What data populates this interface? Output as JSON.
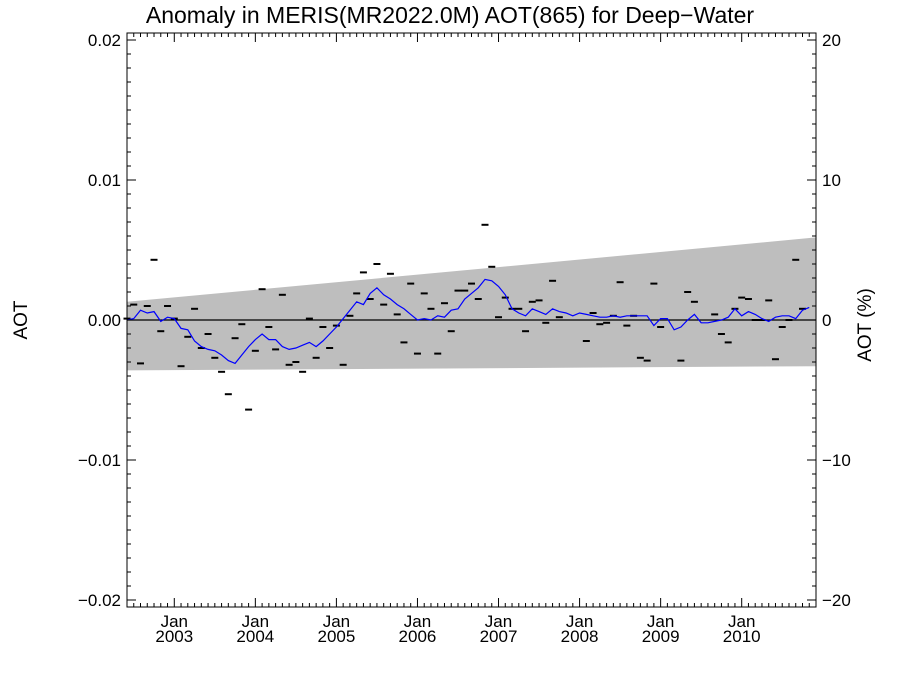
{
  "chart_data": {
    "type": "scatter",
    "title": "Anomaly in MERIS(MR2022.0M) AOT(865) for Deep−Water",
    "ylabel": "AOT",
    "ylabel_right": "AOT (%)",
    "xlim": [
      "2002-06",
      "2010-12"
    ],
    "ylim": [
      -0.0205,
      0.0205
    ],
    "ylim_right": [
      -20.5,
      20.5
    ],
    "grid": false,
    "x_ticks": [
      {
        "month": "Jan",
        "year": "2003",
        "date": "2003-01"
      },
      {
        "month": "Jan",
        "year": "2004",
        "date": "2004-01"
      },
      {
        "month": "Jan",
        "year": "2005",
        "date": "2005-01"
      },
      {
        "month": "Jan",
        "year": "2006",
        "date": "2006-01"
      },
      {
        "month": "Jan",
        "year": "2007",
        "date": "2007-01"
      },
      {
        "month": "Jan",
        "year": "2008",
        "date": "2008-01"
      },
      {
        "month": "Jan",
        "year": "2009",
        "date": "2009-01"
      },
      {
        "month": "Jan",
        "year": "2010",
        "date": "2010-01"
      }
    ],
    "y_ticks_left": [
      {
        "value": 0.02,
        "label": "0.02"
      },
      {
        "value": 0.01,
        "label": "0.01"
      },
      {
        "value": 0.0,
        "label": "0.00"
      },
      {
        "value": -0.01,
        "label": "−0.01"
      },
      {
        "value": -0.02,
        "label": "−0.02"
      }
    ],
    "y_ticks_right": [
      {
        "value": 20,
        "label": "20"
      },
      {
        "value": 10,
        "label": "10"
      },
      {
        "value": 0,
        "label": "0"
      },
      {
        "value": -10,
        "label": "−10"
      },
      {
        "value": -20,
        "label": "−20"
      }
    ],
    "band": {
      "x": [
        "2002-06",
        "2010-12"
      ],
      "upper": [
        0.0013,
        0.0059
      ],
      "lower": [
        -0.0036,
        -0.0033
      ],
      "color": "#bebebe"
    },
    "zero_line": {
      "y": 0.0,
      "color": "#000000"
    },
    "monthly_points": {
      "color": "#000000",
      "values": [
        [
          "2002-06",
          0.0001
        ],
        [
          "2002-07",
          0.0011
        ],
        [
          "2002-08",
          -0.0031
        ],
        [
          "2002-09",
          0.001
        ],
        [
          "2002-10",
          0.0043
        ],
        [
          "2002-11",
          -0.0008
        ],
        [
          "2002-12",
          0.001
        ],
        [
          "2003-01",
          0.0001
        ],
        [
          "2003-02",
          -0.0033
        ],
        [
          "2003-03",
          -0.0012
        ],
        [
          "2003-04",
          0.0008
        ],
        [
          "2003-05",
          -0.002
        ],
        [
          "2003-06",
          -0.001
        ],
        [
          "2003-07",
          -0.0027
        ],
        [
          "2003-08",
          -0.0037
        ],
        [
          "2003-09",
          -0.0053
        ],
        [
          "2003-10",
          -0.0013
        ],
        [
          "2003-11",
          -0.0003
        ],
        [
          "2003-12",
          -0.0064
        ],
        [
          "2004-01",
          -0.0022
        ],
        [
          "2004-02",
          0.0022
        ],
        [
          "2004-03",
          -0.0005
        ],
        [
          "2004-04",
          -0.0021
        ],
        [
          "2004-05",
          0.0018
        ],
        [
          "2004-06",
          -0.0032
        ],
        [
          "2004-07",
          -0.003
        ],
        [
          "2004-08",
          -0.0037
        ],
        [
          "2004-09",
          0.0001
        ],
        [
          "2004-10",
          -0.0027
        ],
        [
          "2004-11",
          -0.0005
        ],
        [
          "2004-12",
          -0.002
        ],
        [
          "2005-01",
          -0.0004
        ],
        [
          "2005-02",
          -0.0032
        ],
        [
          "2005-03",
          0.0003
        ],
        [
          "2005-04",
          0.0019
        ],
        [
          "2005-05",
          0.0034
        ],
        [
          "2005-06",
          0.0015
        ],
        [
          "2005-07",
          0.004
        ],
        [
          "2005-08",
          0.0011
        ],
        [
          "2005-09",
          0.0033
        ],
        [
          "2005-10",
          0.0004
        ],
        [
          "2005-11",
          -0.0016
        ],
        [
          "2005-12",
          0.0026
        ],
        [
          "2006-01",
          -0.0024
        ],
        [
          "2006-02",
          0.0019
        ],
        [
          "2006-03",
          0.0008
        ],
        [
          "2006-04",
          -0.0024
        ],
        [
          "2006-05",
          0.0012
        ],
        [
          "2006-06",
          -0.0008
        ],
        [
          "2006-07",
          0.0021
        ],
        [
          "2006-08",
          0.0021
        ],
        [
          "2006-09",
          0.0026
        ],
        [
          "2006-10",
          0.0015
        ],
        [
          "2006-11",
          0.0068
        ],
        [
          "2006-12",
          0.0038
        ],
        [
          "2007-01",
          0.0002
        ],
        [
          "2007-02",
          0.0016
        ],
        [
          "2007-03",
          0.0008
        ],
        [
          "2007-04",
          0.0008
        ],
        [
          "2007-05",
          -0.0008
        ],
        [
          "2007-06",
          0.0013
        ],
        [
          "2007-07",
          0.0014
        ],
        [
          "2007-08",
          -0.0002
        ],
        [
          "2007-09",
          0.0028
        ],
        [
          "2007-10",
          0.0002
        ],
        [
          "2008-02",
          -0.0015
        ],
        [
          "2008-03",
          0.0005
        ],
        [
          "2008-04",
          -0.0003
        ],
        [
          "2008-05",
          -0.0002
        ],
        [
          "2008-06",
          0.0003
        ],
        [
          "2008-07",
          0.0027
        ],
        [
          "2008-08",
          -0.0004
        ],
        [
          "2008-09",
          0.0003
        ],
        [
          "2008-10",
          -0.0027
        ],
        [
          "2008-11",
          -0.0029
        ],
        [
          "2008-12",
          0.0026
        ],
        [
          "2009-01",
          -0.0005
        ],
        [
          "2009-04",
          -0.0029
        ],
        [
          "2009-05",
          0.002
        ],
        [
          "2009-06",
          0.0013
        ],
        [
          "2009-09",
          0.0004
        ],
        [
          "2009-10",
          -0.001
        ],
        [
          "2009-11",
          -0.0016
        ],
        [
          "2009-12",
          0.0008
        ],
        [
          "2010-01",
          0.0016
        ],
        [
          "2010-02",
          0.0015
        ],
        [
          "2010-03",
          0.0
        ],
        [
          "2010-04",
          0.0
        ],
        [
          "2010-05",
          0.0014
        ],
        [
          "2010-06",
          -0.0028
        ],
        [
          "2010-07",
          -0.0005
        ],
        [
          "2010-08",
          0.0
        ],
        [
          "2010-09",
          0.0043
        ],
        [
          "2010-10",
          0.0008
        ]
      ]
    },
    "running_mean": {
      "color": "#0000ff",
      "values": [
        [
          "2002-06",
          0.0
        ],
        [
          "2002-07",
          0.0001
        ],
        [
          "2002-08",
          0.0007
        ],
        [
          "2002-09",
          0.0005
        ],
        [
          "2002-10",
          0.0006
        ],
        [
          "2002-11",
          -0.0001
        ],
        [
          "2002-12",
          0.0002
        ],
        [
          "2003-01",
          0.0001
        ],
        [
          "2003-02",
          -0.0006
        ],
        [
          "2003-03",
          -0.0007
        ],
        [
          "2003-04",
          -0.0015
        ],
        [
          "2003-05",
          -0.0019
        ],
        [
          "2003-06",
          -0.0021
        ],
        [
          "2003-07",
          -0.0022
        ],
        [
          "2003-08",
          -0.0025
        ],
        [
          "2003-09",
          -0.0029
        ],
        [
          "2003-10",
          -0.0031
        ],
        [
          "2003-11",
          -0.0025
        ],
        [
          "2003-12",
          -0.0019
        ],
        [
          "2004-01",
          -0.0014
        ],
        [
          "2004-02",
          -0.001
        ],
        [
          "2004-03",
          -0.0014
        ],
        [
          "2004-04",
          -0.0014
        ],
        [
          "2004-05",
          -0.0019
        ],
        [
          "2004-06",
          -0.0021
        ],
        [
          "2004-07",
          -0.002
        ],
        [
          "2004-08",
          -0.0018
        ],
        [
          "2004-09",
          -0.0016
        ],
        [
          "2004-10",
          -0.0019
        ],
        [
          "2004-11",
          -0.0015
        ],
        [
          "2004-12",
          -0.001
        ],
        [
          "2005-01",
          -0.0005
        ],
        [
          "2005-02",
          0.0001
        ],
        [
          "2005-03",
          0.0007
        ],
        [
          "2005-04",
          0.0013
        ],
        [
          "2005-05",
          0.0011
        ],
        [
          "2005-06",
          0.0019
        ],
        [
          "2005-07",
          0.0023
        ],
        [
          "2005-08",
          0.0018
        ],
        [
          "2005-09",
          0.0015
        ],
        [
          "2005-10",
          0.0011
        ],
        [
          "2005-11",
          0.0008
        ],
        [
          "2005-12",
          0.0004
        ],
        [
          "2006-01",
          0.0
        ],
        [
          "2006-02",
          0.0001
        ],
        [
          "2006-03",
          0.0
        ],
        [
          "2006-04",
          0.0003
        ],
        [
          "2006-05",
          0.0002
        ],
        [
          "2006-06",
          0.0007
        ],
        [
          "2006-07",
          0.0008
        ],
        [
          "2006-08",
          0.0015
        ],
        [
          "2006-09",
          0.0019
        ],
        [
          "2006-10",
          0.0023
        ],
        [
          "2006-11",
          0.0029
        ],
        [
          "2006-12",
          0.0028
        ],
        [
          "2007-01",
          0.0024
        ],
        [
          "2007-02",
          0.0018
        ],
        [
          "2007-03",
          0.0008
        ],
        [
          "2007-04",
          0.0005
        ],
        [
          "2007-05",
          0.0003
        ],
        [
          "2007-06",
          0.0008
        ],
        [
          "2007-07",
          0.0006
        ],
        [
          "2007-08",
          0.0004
        ],
        [
          "2007-09",
          0.0008
        ],
        [
          "2007-10",
          0.0006
        ],
        [
          "2007-11",
          0.0005
        ],
        [
          "2007-12",
          0.0003
        ],
        [
          "2008-01",
          0.0005
        ],
        [
          "2008-02",
          0.0004
        ],
        [
          "2008-03",
          0.0003
        ],
        [
          "2008-04",
          0.0002
        ],
        [
          "2008-05",
          0.0002
        ],
        [
          "2008-06",
          0.0003
        ],
        [
          "2008-07",
          0.0002
        ],
        [
          "2008-08",
          0.0003
        ],
        [
          "2008-09",
          0.0003
        ],
        [
          "2008-10",
          0.0003
        ],
        [
          "2008-11",
          0.0003
        ],
        [
          "2008-12",
          -0.0004
        ],
        [
          "2009-01",
          0.0001
        ],
        [
          "2009-02",
          0.0001
        ],
        [
          "2009-03",
          -0.0007
        ],
        [
          "2009-04",
          -0.0005
        ],
        [
          "2009-05",
          0.0
        ],
        [
          "2009-06",
          0.0004
        ],
        [
          "2009-07",
          -0.0002
        ],
        [
          "2009-08",
          -0.0002
        ],
        [
          "2009-09",
          -0.0001
        ],
        [
          "2009-10",
          0.0
        ],
        [
          "2009-11",
          0.0002
        ],
        [
          "2009-12",
          0.0008
        ],
        [
          "2010-01",
          0.0003
        ],
        [
          "2010-02",
          0.0006
        ],
        [
          "2010-03",
          0.0004
        ],
        [
          "2010-04",
          0.0001
        ],
        [
          "2010-05",
          -0.0001
        ],
        [
          "2010-06",
          0.0002
        ],
        [
          "2010-07",
          0.0003
        ],
        [
          "2010-08",
          0.0003
        ],
        [
          "2010-09",
          0.0001
        ],
        [
          "2010-10",
          0.0007
        ],
        [
          "2010-11",
          0.0009
        ]
      ]
    }
  }
}
